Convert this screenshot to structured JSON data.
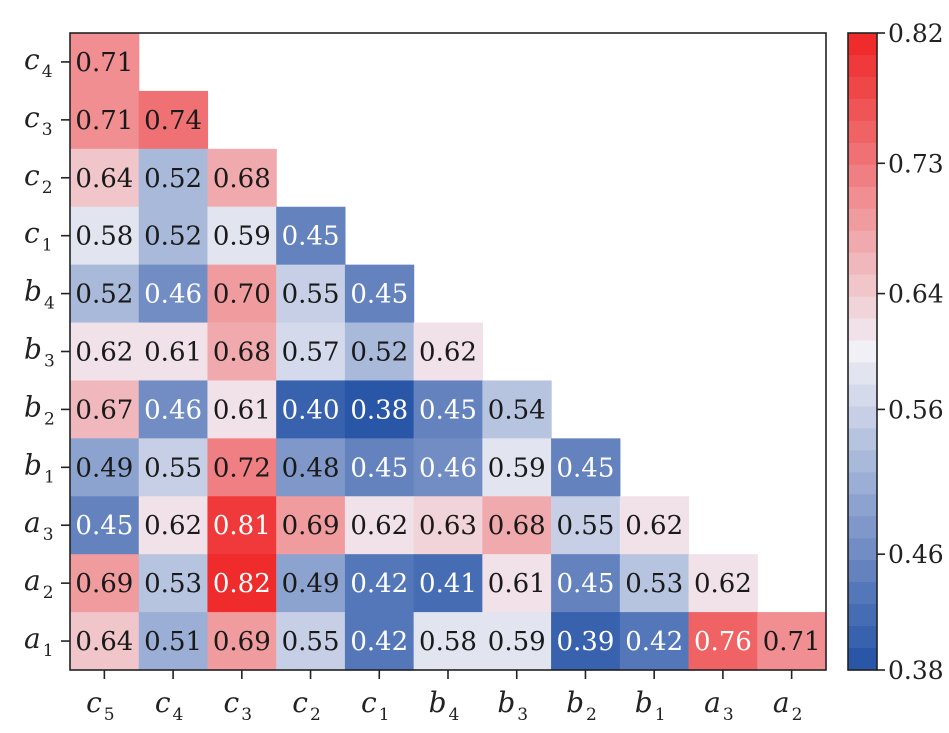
{
  "chart_data": {
    "type": "heatmap",
    "title": "",
    "xlabel": "",
    "ylabel": "",
    "x_labels": [
      {
        "base": "c",
        "sub": "5"
      },
      {
        "base": "c",
        "sub": "4"
      },
      {
        "base": "c",
        "sub": "3"
      },
      {
        "base": "c",
        "sub": "2"
      },
      {
        "base": "c",
        "sub": "1"
      },
      {
        "base": "b",
        "sub": "4"
      },
      {
        "base": "b",
        "sub": "3"
      },
      {
        "base": "b",
        "sub": "2"
      },
      {
        "base": "b",
        "sub": "1"
      },
      {
        "base": "a",
        "sub": "3"
      },
      {
        "base": "a",
        "sub": "2"
      }
    ],
    "y_labels": [
      {
        "base": "c",
        "sub": "4"
      },
      {
        "base": "c",
        "sub": "3"
      },
      {
        "base": "c",
        "sub": "2"
      },
      {
        "base": "c",
        "sub": "1"
      },
      {
        "base": "b",
        "sub": "4"
      },
      {
        "base": "b",
        "sub": "3"
      },
      {
        "base": "b",
        "sub": "2"
      },
      {
        "base": "b",
        "sub": "1"
      },
      {
        "base": "a",
        "sub": "3"
      },
      {
        "base": "a",
        "sub": "2"
      },
      {
        "base": "a",
        "sub": "1"
      }
    ],
    "values": [
      [
        "0.71"
      ],
      [
        "0.71",
        "0.74"
      ],
      [
        "0.64",
        "0.52",
        "0.68"
      ],
      [
        "0.58",
        "0.52",
        "0.59",
        "0.45"
      ],
      [
        "0.52",
        "0.46",
        "0.70",
        "0.55",
        "0.45"
      ],
      [
        "0.62",
        "0.61",
        "0.68",
        "0.57",
        "0.52",
        "0.62"
      ],
      [
        "0.67",
        "0.46",
        "0.61",
        "0.40",
        "0.38",
        "0.45",
        "0.54"
      ],
      [
        "0.49",
        "0.55",
        "0.72",
        "0.48",
        "0.45",
        "0.46",
        "0.59",
        "0.45"
      ],
      [
        "0.45",
        "0.62",
        "0.81",
        "0.69",
        "0.62",
        "0.63",
        "0.68",
        "0.55",
        "0.62"
      ],
      [
        "0.69",
        "0.53",
        "0.82",
        "0.49",
        "0.42",
        "0.41",
        "0.61",
        "0.45",
        "0.53",
        "0.62"
      ],
      [
        "0.64",
        "0.51",
        "0.69",
        "0.55",
        "0.42",
        "0.58",
        "0.59",
        "0.39",
        "0.42",
        "0.76",
        "0.71"
      ]
    ],
    "colorbar": {
      "min": 0.38,
      "max": 0.82,
      "ticks": [
        "0.82",
        "0.73",
        "0.64",
        "0.56",
        "0.46",
        "0.38"
      ],
      "colormap": "blue-white-red",
      "low_color": "#2a56a8",
      "mid_color": "#f0f0f6",
      "high_color": "#ef2b2b"
    }
  }
}
